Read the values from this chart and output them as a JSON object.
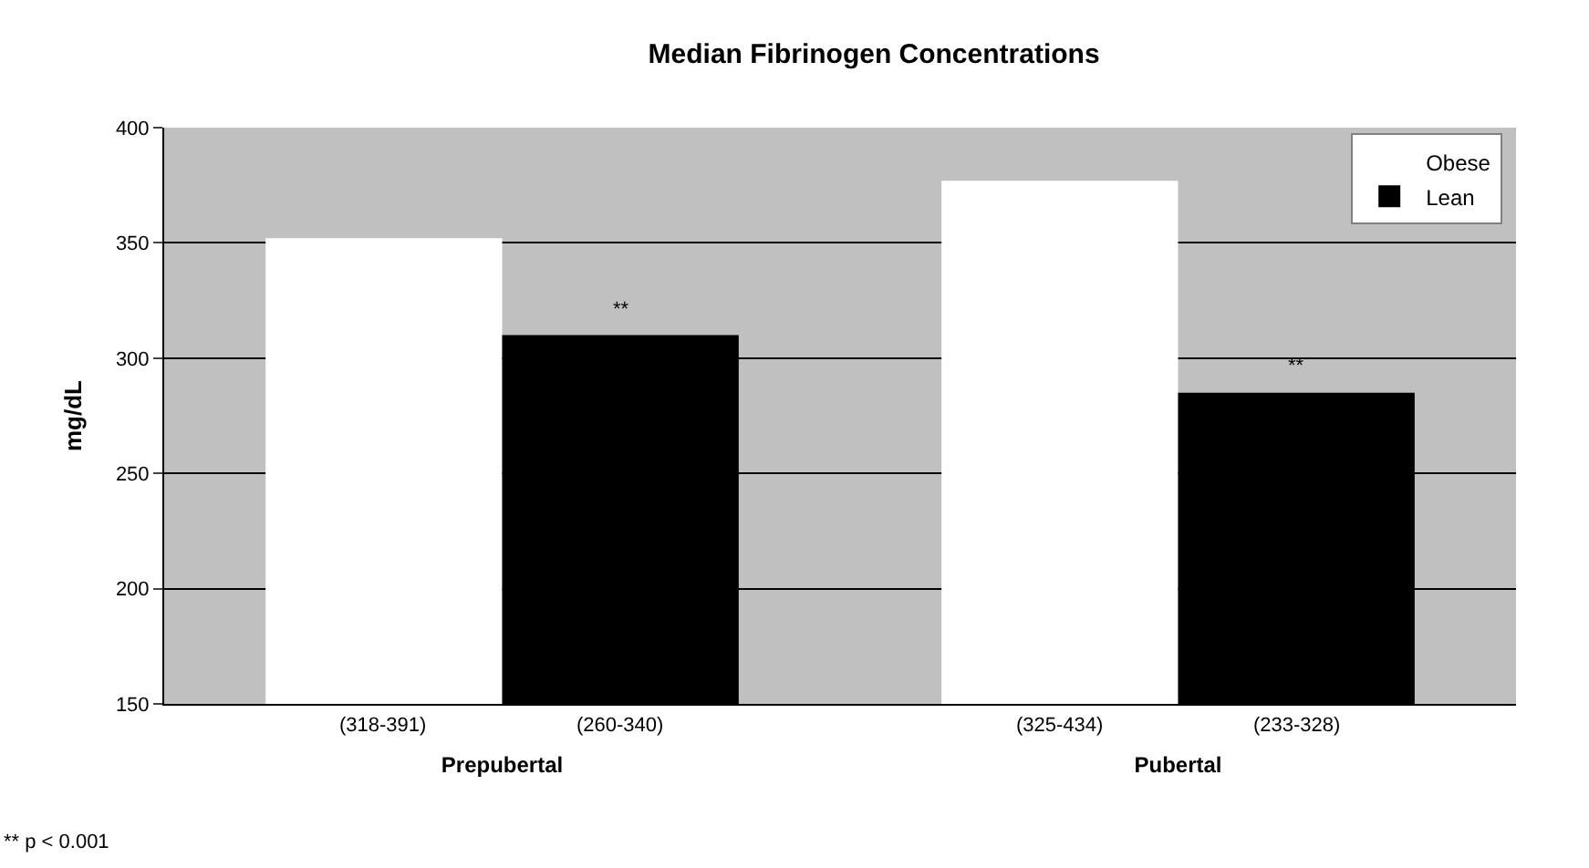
{
  "chart_data": {
    "type": "bar",
    "title": "Median Fibrinogen Concentrations",
    "ylabel": "mg/dL",
    "categories": [
      "Prepubertal",
      "Pubertal"
    ],
    "series": [
      {
        "name": "Obese",
        "color": "#ffffff",
        "values": [
          352,
          377
        ],
        "value_labels": [
          "(318-391)",
          "(325-434)"
        ]
      },
      {
        "name": "Lean",
        "color": "#000000",
        "values": [
          310,
          285
        ],
        "value_labels": [
          "(260-340)",
          "(233-328)"
        ]
      }
    ],
    "ylim": [
      150,
      400
    ],
    "yticks": [
      150,
      200,
      250,
      300,
      350,
      400
    ],
    "grid": "y",
    "legend": "top right",
    "annotations": [
      "**",
      "**",
      "** p < 0.001"
    ]
  }
}
